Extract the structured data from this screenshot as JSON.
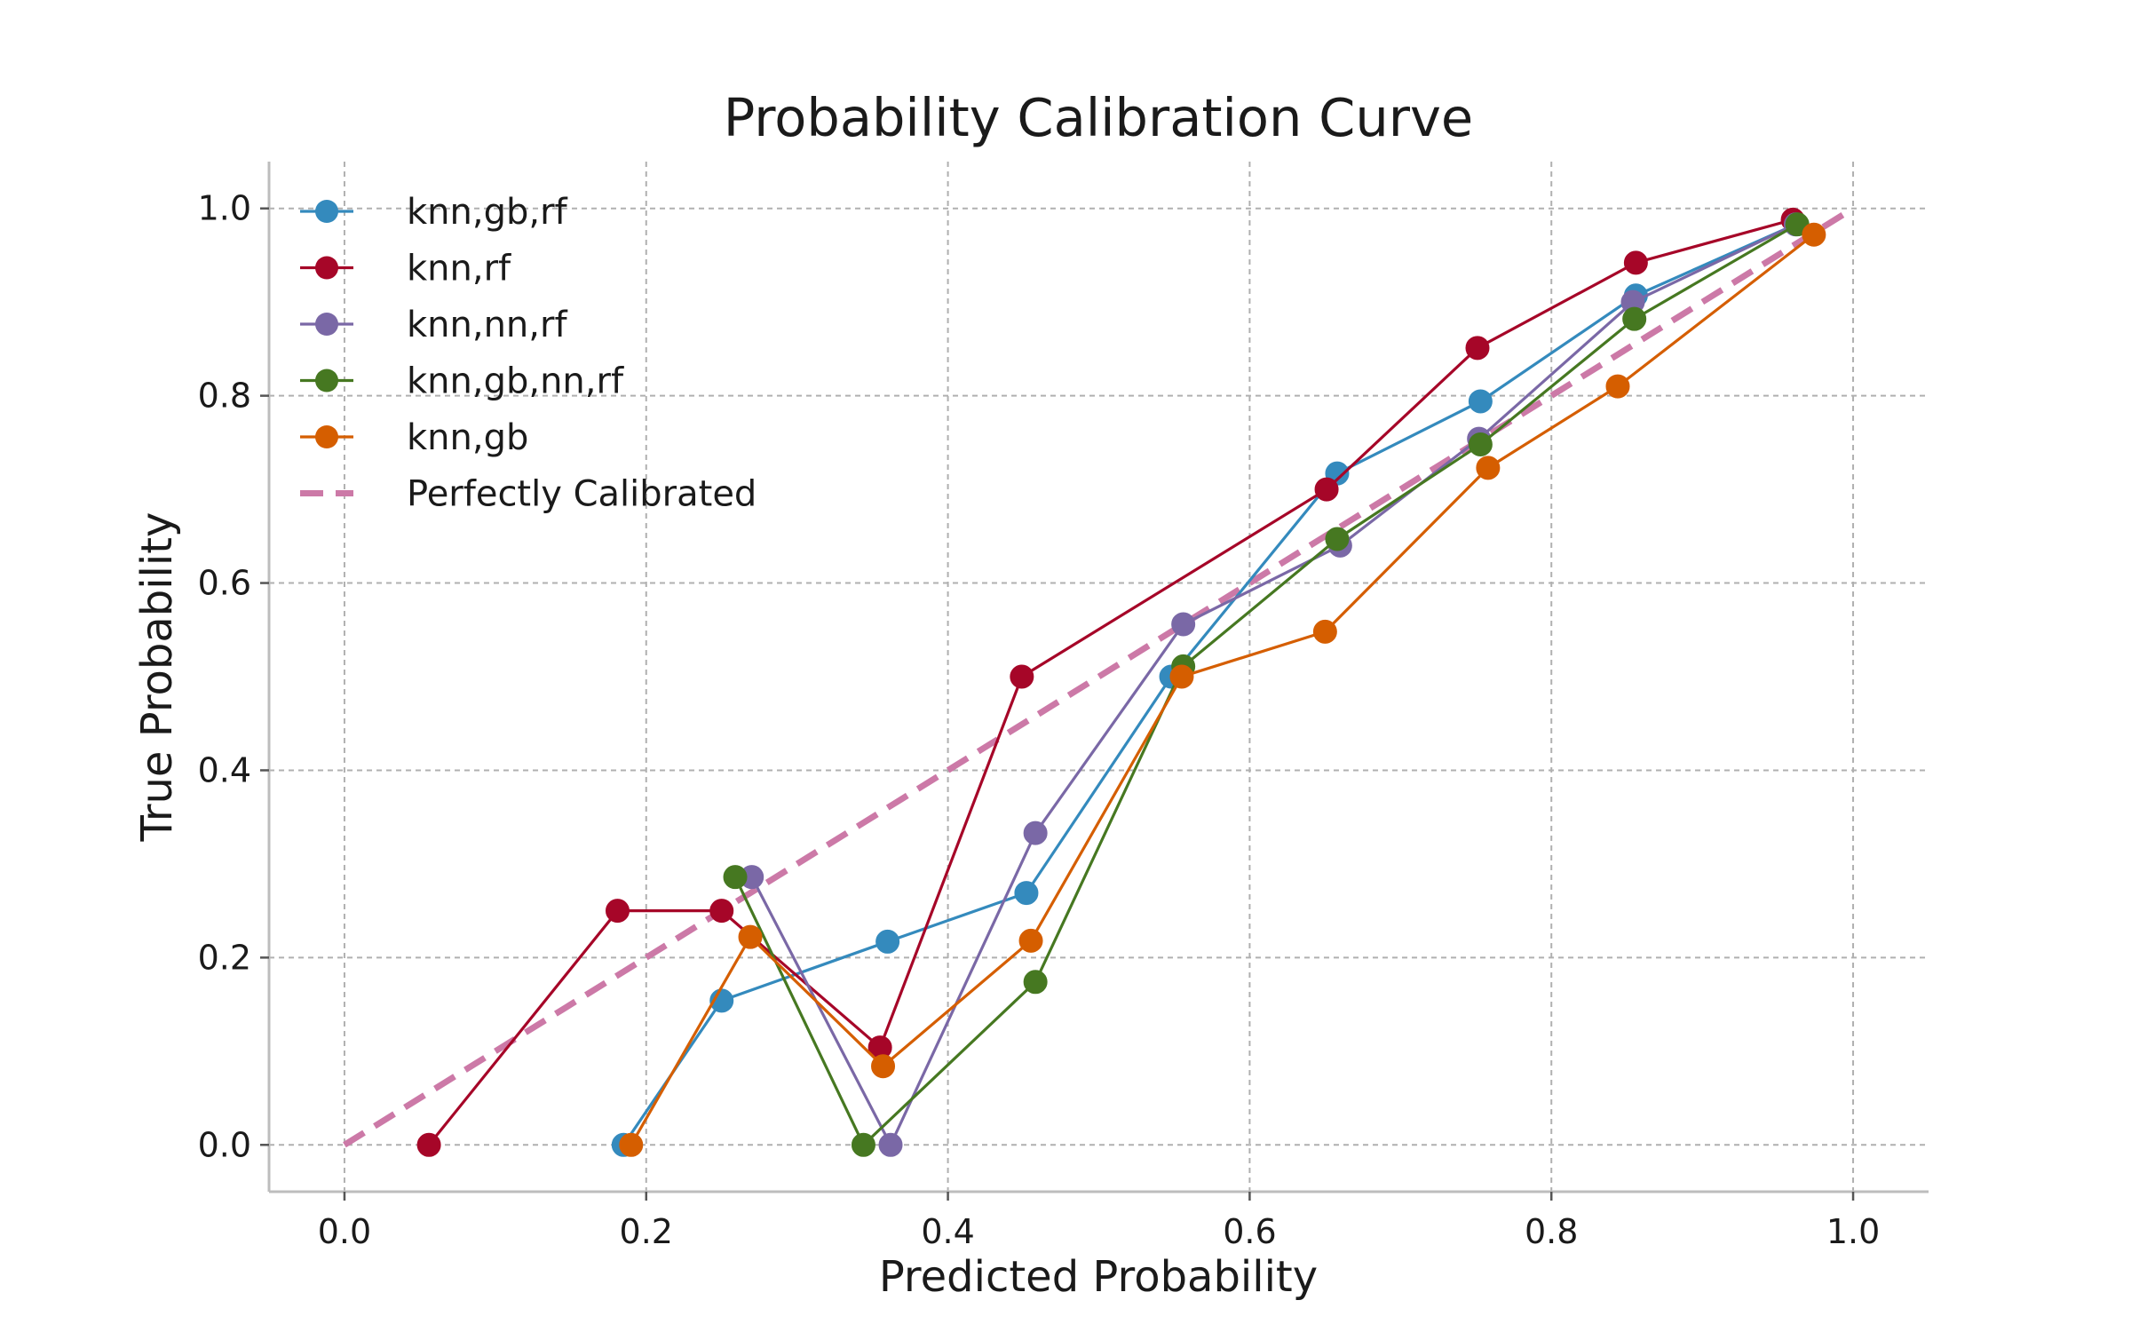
{
  "chart_data": {
    "type": "line",
    "title": "Probability Calibration Curve",
    "xlabel": "Predicted Probability",
    "ylabel": "True Probability",
    "xlim": [
      -0.05,
      1.05
    ],
    "ylim": [
      -0.05,
      1.05
    ],
    "xticks": [
      0.0,
      0.2,
      0.4,
      0.6,
      0.8,
      1.0
    ],
    "yticks": [
      0.0,
      0.2,
      0.4,
      0.6,
      0.8,
      1.0
    ],
    "xtick_labels": [
      "0.0",
      "0.2",
      "0.4",
      "0.6",
      "0.8",
      "1.0"
    ],
    "ytick_labels": [
      "0.0",
      "0.2",
      "0.4",
      "0.6",
      "0.8",
      "1.0"
    ],
    "grid": true,
    "legend_position": "top-left",
    "series": [
      {
        "name": "knn,gb,rf",
        "color": "#348ABD",
        "points": [
          [
            0.185,
            0.0
          ],
          [
            0.25,
            0.154
          ],
          [
            0.36,
            0.217
          ],
          [
            0.452,
            0.269
          ],
          [
            0.548,
            0.5
          ],
          [
            0.658,
            0.717
          ],
          [
            0.753,
            0.794
          ],
          [
            0.856,
            0.907
          ],
          [
            0.962,
            0.983
          ]
        ]
      },
      {
        "name": "knn,rf",
        "color": "#A60628",
        "points": [
          [
            0.056,
            0.0
          ],
          [
            0.181,
            0.25
          ],
          [
            0.25,
            0.25
          ],
          [
            0.355,
            0.104
          ],
          [
            0.449,
            0.5
          ],
          [
            0.651,
            0.7
          ],
          [
            0.751,
            0.851
          ],
          [
            0.856,
            0.942
          ],
          [
            0.96,
            0.988
          ]
        ]
      },
      {
        "name": "knn,nn,rf",
        "color": "#7A68A6",
        "points": [
          [
            0.27,
            0.286
          ],
          [
            0.362,
            0.0
          ],
          [
            0.458,
            0.333
          ],
          [
            0.556,
            0.556
          ],
          [
            0.66,
            0.64
          ],
          [
            0.752,
            0.754
          ],
          [
            0.854,
            0.9
          ],
          [
            0.962,
            0.983
          ]
        ]
      },
      {
        "name": "knn,gb,nn,rf",
        "color": "#467821",
        "points": [
          [
            0.259,
            0.286
          ],
          [
            0.344,
            0.0
          ],
          [
            0.458,
            0.174
          ],
          [
            0.556,
            0.511
          ],
          [
            0.658,
            0.647
          ],
          [
            0.753,
            0.748
          ],
          [
            0.855,
            0.882
          ],
          [
            0.963,
            0.983
          ]
        ]
      },
      {
        "name": "knn,gb",
        "color": "#D55E00",
        "points": [
          [
            0.19,
            0.0
          ],
          [
            0.269,
            0.222
          ],
          [
            0.357,
            0.084
          ],
          [
            0.455,
            0.218
          ],
          [
            0.555,
            0.5
          ],
          [
            0.65,
            0.548
          ],
          [
            0.758,
            0.723
          ],
          [
            0.844,
            0.81
          ],
          [
            0.974,
            0.972
          ]
        ]
      }
    ],
    "reference": {
      "name": "Perfectly Calibrated",
      "color": "#CC79A7",
      "points": [
        [
          0.0,
          0.0
        ],
        [
          1.0,
          1.0
        ]
      ]
    }
  }
}
